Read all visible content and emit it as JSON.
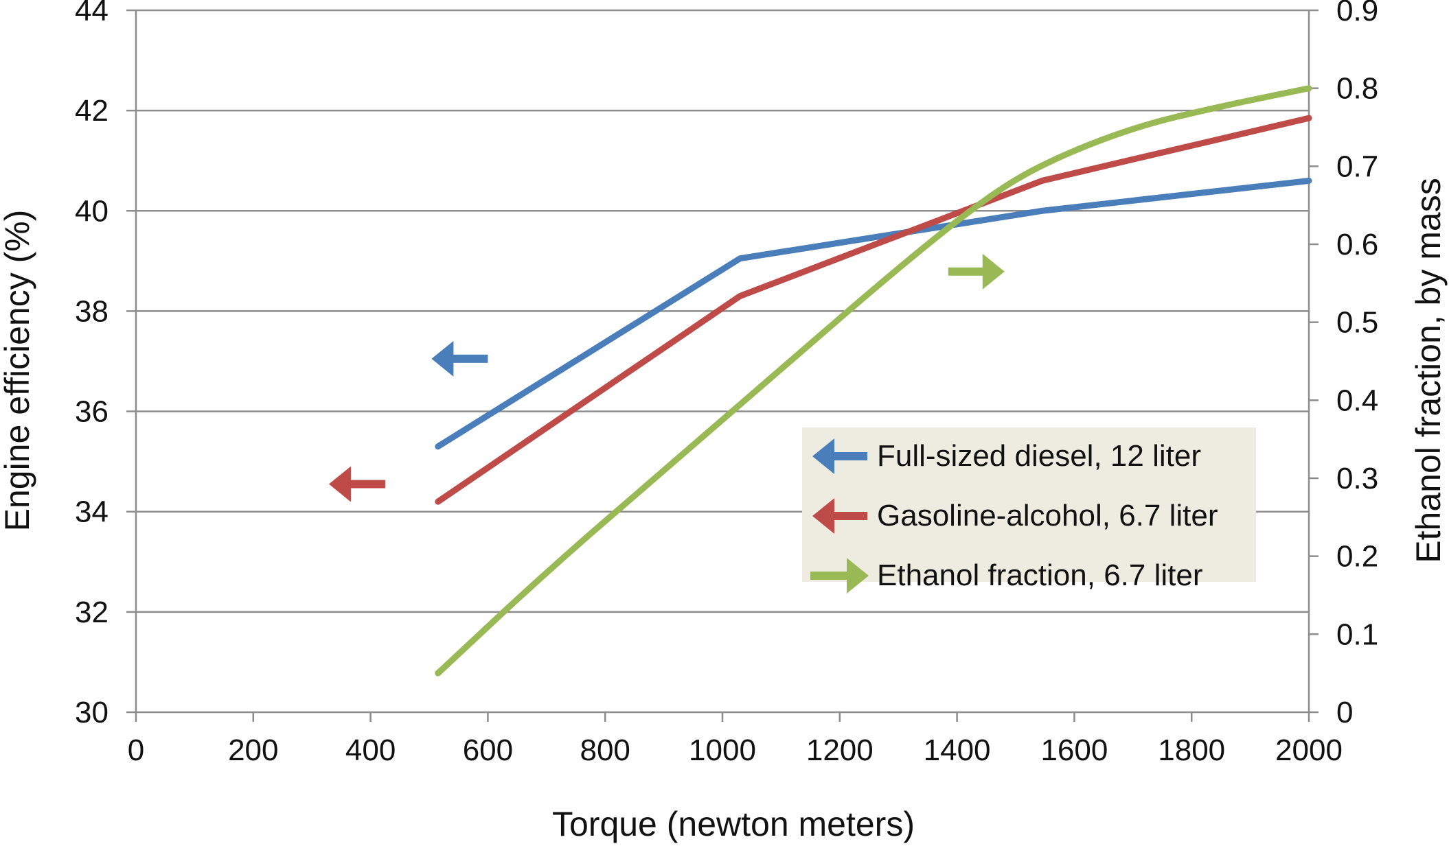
{
  "chart_data": {
    "type": "line",
    "title": "",
    "xlabel": "Torque (newton meters)",
    "ylabel": "Engine efficiency (%)",
    "y2label": "Ethanol fraction, by mass",
    "xlim": [
      0,
      2000
    ],
    "ylim": [
      30,
      44
    ],
    "y2lim": [
      0,
      0.9
    ],
    "x_ticks": [
      0,
      200,
      400,
      600,
      800,
      1000,
      1200,
      1400,
      1600,
      1800,
      2000
    ],
    "y_ticks": [
      30,
      32,
      34,
      36,
      38,
      40,
      42,
      44
    ],
    "y2_ticks": [
      "0",
      "0.1",
      "0.2",
      "0.3",
      "0.4",
      "0.5",
      "0.6",
      "0.7",
      "0.8",
      "0.9"
    ],
    "grid": "horizontal",
    "legend_position": "right",
    "series": [
      {
        "name": "Full-sized diesel, 12 liter",
        "axis": "left",
        "color": "#4a7ebb",
        "direction": "left",
        "points": [
          [
            515,
            35.3
          ],
          [
            1030,
            39.05
          ],
          [
            1545,
            40.0
          ],
          [
            2000,
            40.6
          ]
        ]
      },
      {
        "name": "Gasoline-alcohol, 6.7 liter",
        "axis": "left",
        "color": "#be4b48",
        "direction": "left",
        "points": [
          [
            515,
            34.2
          ],
          [
            1030,
            38.3
          ],
          [
            1545,
            40.6
          ],
          [
            2000,
            41.85
          ]
        ]
      },
      {
        "name": "Ethanol fraction, 6.7 liter",
        "axis": "right",
        "color": "#98b954",
        "direction": "right",
        "points": [
          [
            515,
            0.05
          ],
          [
            700,
            0.18
          ],
          [
            900,
            0.31
          ],
          [
            1100,
            0.44
          ],
          [
            1300,
            0.57
          ],
          [
            1450,
            0.66
          ],
          [
            1550,
            0.705
          ],
          [
            1700,
            0.75
          ],
          [
            1850,
            0.777
          ],
          [
            2000,
            0.8
          ]
        ]
      }
    ],
    "annotations": [
      {
        "type": "arrow",
        "series": 0,
        "direction": "left",
        "x": 600,
        "y": 37.05
      },
      {
        "type": "arrow",
        "series": 1,
        "direction": "left",
        "x": 425,
        "y": 34.55
      },
      {
        "type": "arrow",
        "series": 2,
        "direction": "right",
        "x": 1385,
        "y2": 0.565
      }
    ]
  }
}
